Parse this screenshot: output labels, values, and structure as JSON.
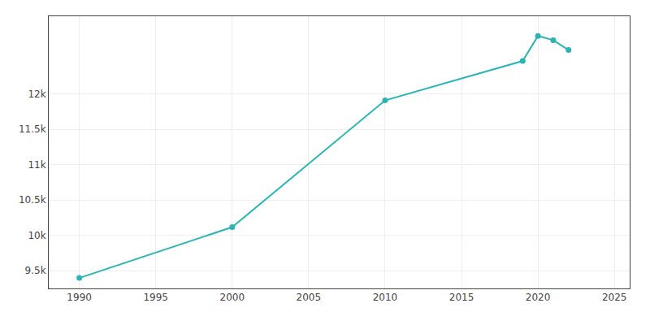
{
  "chart_data": {
    "type": "line",
    "x": [
      1990,
      2000,
      2010,
      2019,
      2020,
      2021,
      2022
    ],
    "values": [
      9398,
      10117,
      11910,
      12467,
      12822,
      12762,
      12622
    ],
    "color": "#2ab5b5",
    "marker": "circle",
    "xlim": [
      1988,
      2026
    ],
    "ylim": [
      9250,
      13100
    ],
    "xticks": [
      1990,
      1995,
      2000,
      2005,
      2010,
      2015,
      2020,
      2025
    ],
    "yticks": [
      {
        "value": 9500,
        "label": "9.5k"
      },
      {
        "value": 10000,
        "label": "10k"
      },
      {
        "value": 10500,
        "label": "10.5k"
      },
      {
        "value": 11000,
        "label": "11k"
      },
      {
        "value": 11500,
        "label": "11.5k"
      },
      {
        "value": 12000,
        "label": "12k"
      }
    ],
    "grid": true
  }
}
